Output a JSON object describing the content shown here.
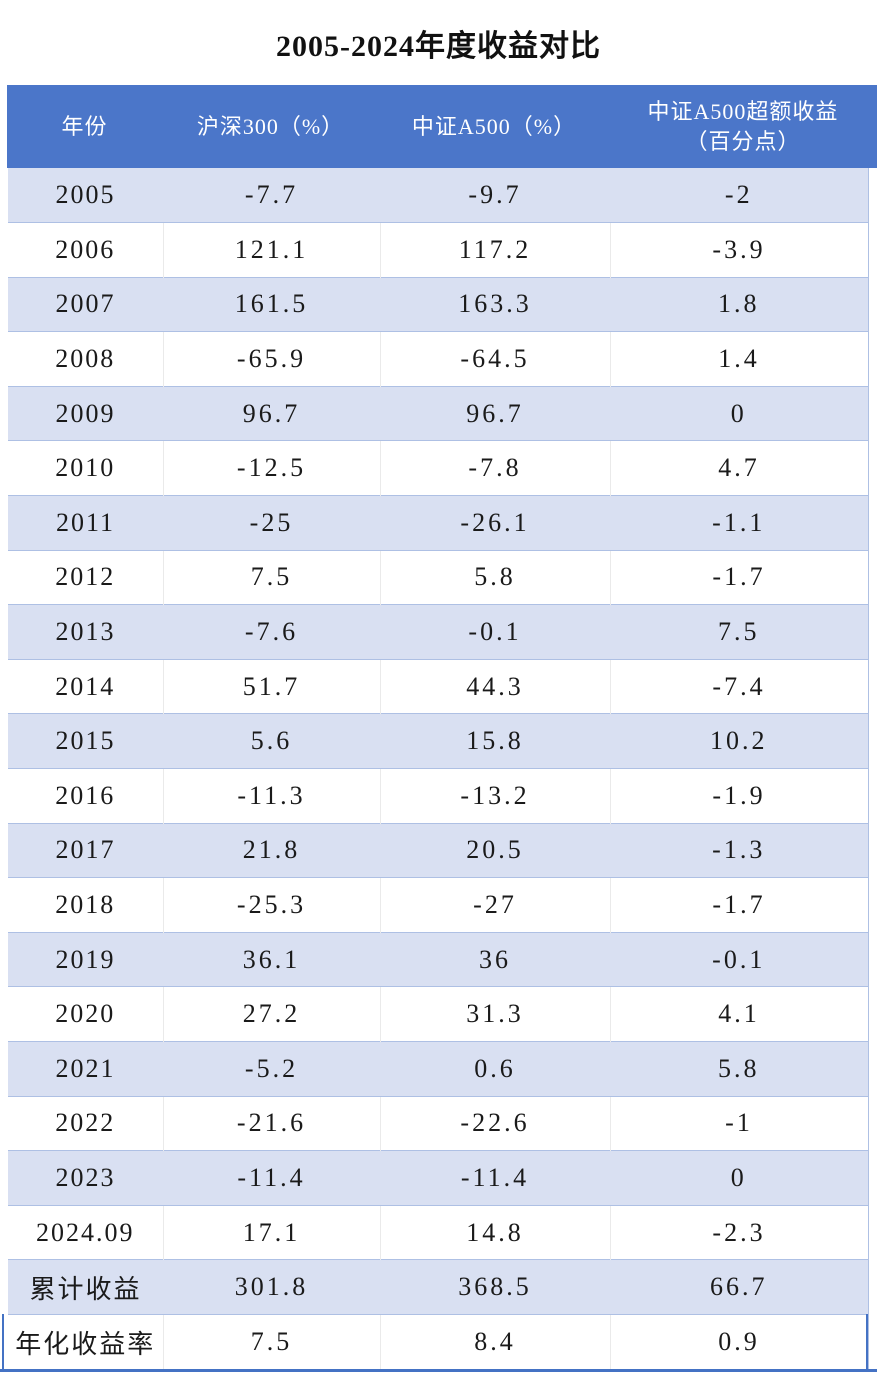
{
  "chart_data": {
    "type": "table",
    "title": "2005-2024年度收益对比",
    "columns": [
      "年份",
      "沪深300（%）",
      "中证A500（%）",
      "中证A500超额收益（百分点）"
    ],
    "column4_wrap": [
      "中证A500超额收益",
      "（百分点）"
    ],
    "rows": [
      [
        "2005",
        "-7.7",
        "-9.7",
        "-2"
      ],
      [
        "2006",
        "121.1",
        "117.2",
        "-3.9"
      ],
      [
        "2007",
        "161.5",
        "163.3",
        "1.8"
      ],
      [
        "2008",
        "-65.9",
        "-64.5",
        "1.4"
      ],
      [
        "2009",
        "96.7",
        "96.7",
        "0"
      ],
      [
        "2010",
        "-12.5",
        "-7.8",
        "4.7"
      ],
      [
        "2011",
        "-25",
        "-26.1",
        "-1.1"
      ],
      [
        "2012",
        "7.5",
        "5.8",
        "-1.7"
      ],
      [
        "2013",
        "-7.6",
        "-0.1",
        "7.5"
      ],
      [
        "2014",
        "51.7",
        "44.3",
        "-7.4"
      ],
      [
        "2015",
        "5.6",
        "15.8",
        "10.2"
      ],
      [
        "2016",
        "-11.3",
        "-13.2",
        "-1.9"
      ],
      [
        "2017",
        "21.8",
        "20.5",
        "-1.3"
      ],
      [
        "2018",
        "-25.3",
        "-27",
        "-1.7"
      ],
      [
        "2019",
        "36.1",
        "36",
        "-0.1"
      ],
      [
        "2020",
        "27.2",
        "31.3",
        "4.1"
      ],
      [
        "2021",
        "-5.2",
        "0.6",
        "5.8"
      ],
      [
        "2022",
        "-21.6",
        "-22.6",
        "-1"
      ],
      [
        "2023",
        "-11.4",
        "-11.4",
        "0"
      ],
      [
        "2024.09",
        "17.1",
        "14.8",
        "-2.3"
      ],
      [
        "累计收益",
        "301.8",
        "368.5",
        "66.7"
      ],
      [
        "年化收益率",
        "7.5",
        "8.4",
        "0.9"
      ]
    ],
    "layout": {
      "striped": true,
      "stripe_pattern": "odd-rows-shaded-starting-2005",
      "header_position": "top"
    }
  },
  "colors": {
    "header_bg": "#4B76C9",
    "header_text": "#FFFFFF",
    "alt_row_bg": "#D9E0F2",
    "row_border": "#AEC0E4",
    "column_border": "#EAEAEA",
    "bottom_rule": "#4472C4",
    "body_text": "#1A1A1A"
  }
}
